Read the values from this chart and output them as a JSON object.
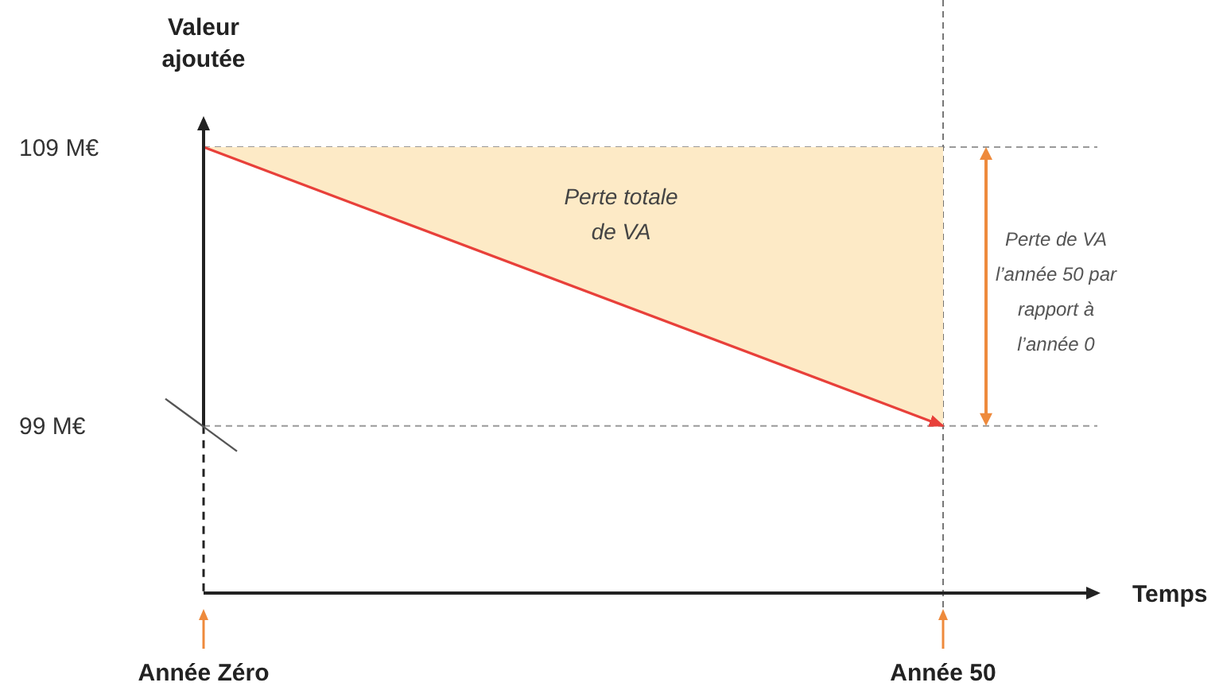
{
  "chart_data": {
    "type": "line",
    "ylabel": "Valeur ajoutée",
    "xlabel": "Temps",
    "categories": [
      "Année Zéro",
      "Année 50"
    ],
    "ylim": [
      93,
      110
    ],
    "yticks": [
      {
        "value": 99,
        "label": "99 M€"
      },
      {
        "value": 109,
        "label": "109 M€"
      }
    ],
    "series": [
      {
        "color": "#e8403a",
        "values": [
          109,
          99
        ],
        "lower": [
          109,
          99
        ],
        "upper": [
          109,
          109
        ]
      }
    ],
    "ref_lines": [
      {
        "axis": "y",
        "value": 109,
        "color": "#999999",
        "line_style": "dashed"
      },
      {
        "axis": "y",
        "value": 99,
        "color": "#999999",
        "line_style": "dashed"
      },
      {
        "axis": "x",
        "value": "Année 50",
        "color": "#777777",
        "line_style": "dashed"
      }
    ],
    "annotations": [
      "Perte totale\nde VA",
      "Perte de VA\nl’année 50 par\nrapport à\nl’année 0"
    ],
    "grid": false,
    "marker": "none",
    "line_style": "solid"
  }
}
